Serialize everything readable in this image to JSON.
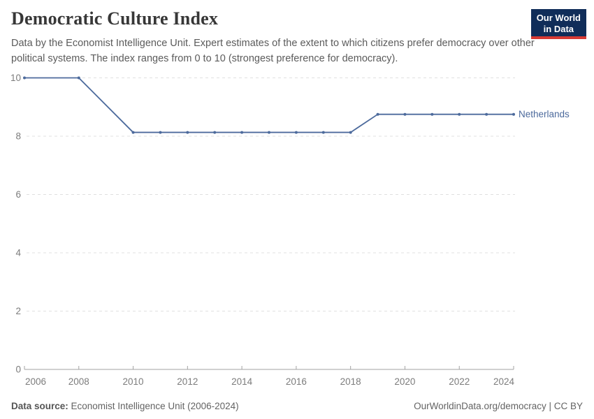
{
  "header": {
    "title": "Democratic Culture Index",
    "subtitle": "Data by the Economist Intelligence Unit. Expert estimates of the extent to which citizens prefer democracy over other political systems. The index ranges from 0 to 10 (strongest preference for democracy)."
  },
  "logo": {
    "line1": "Our World",
    "line2": "in Data",
    "bg_color": "#102d59",
    "accent_color": "#d73a34"
  },
  "chart_data": {
    "type": "line",
    "title": "Democratic Culture Index",
    "xlabel": "",
    "ylabel": "",
    "xlim": [
      2006,
      2024
    ],
    "ylim": [
      0,
      10
    ],
    "x_ticks": [
      2006,
      2008,
      2010,
      2012,
      2014,
      2016,
      2018,
      2020,
      2022,
      2024
    ],
    "y_ticks": [
      0,
      2,
      4,
      6,
      8,
      10
    ],
    "grid": "horizontal-dashed",
    "legend_position": "end-of-line",
    "series": [
      {
        "name": "Netherlands",
        "color": "#4C6A9C",
        "x": [
          2006,
          2008,
          2010,
          2011,
          2012,
          2013,
          2014,
          2015,
          2016,
          2017,
          2018,
          2019,
          2020,
          2021,
          2022,
          2023,
          2024
        ],
        "y": [
          10,
          10,
          8.13,
          8.13,
          8.13,
          8.13,
          8.13,
          8.13,
          8.13,
          8.13,
          8.13,
          8.75,
          8.75,
          8.75,
          8.75,
          8.75,
          8.75
        ]
      }
    ]
  },
  "footer": {
    "datasource_label": "Data source:",
    "datasource_value": " Economist Intelligence Unit (2006-2024)",
    "credit": "OurWorldinData.org/democracy | CC BY"
  }
}
